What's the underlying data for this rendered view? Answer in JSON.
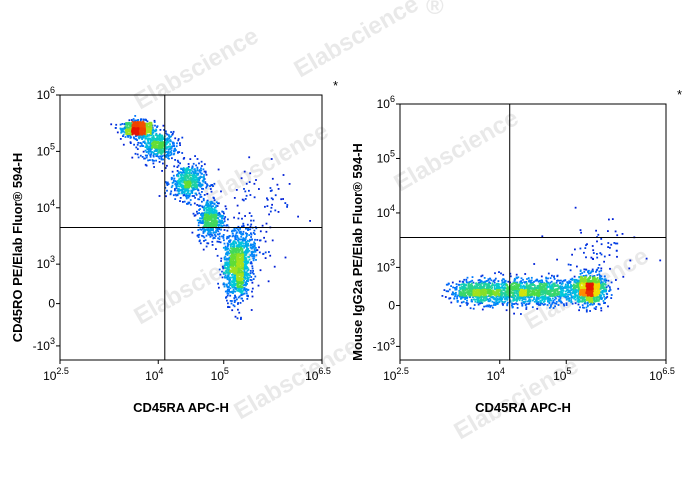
{
  "watermark": "Elabscience",
  "watermark_mark": "®",
  "chart_data": [
    {
      "type": "scatter",
      "style": "density-dot-plot",
      "xlabel": "CD45RA APC-H",
      "ylabel": "CD45RO PE/Elab Fluor® 594-H",
      "corner_mark": "*",
      "x_ticks": [
        {
          "base": "10",
          "exp": "2.5",
          "v": 2.5
        },
        {
          "base": "10",
          "exp": "4",
          "v": 4
        },
        {
          "base": "10",
          "exp": "5",
          "v": 5
        },
        {
          "base": "10",
          "exp": "6.5",
          "v": 6.5
        }
      ],
      "y_ticks": [
        {
          "base": "10",
          "exp": "6",
          "v": 6
        },
        {
          "base": "10",
          "exp": "5",
          "v": 5
        },
        {
          "base": "10",
          "exp": "4",
          "v": 4
        },
        {
          "base": "10",
          "exp": "3",
          "v": 3
        },
        {
          "base": "0",
          "exp": "",
          "v": 2.3
        },
        {
          "base": "-10",
          "exp": "3",
          "v": 1.55
        }
      ],
      "xlim": [
        2.5,
        6.5
      ],
      "ylim": [
        1.3,
        6.0
      ],
      "gate": {
        "x": 4.1,
        "y": 3.65
      },
      "populations": [
        {
          "x": 3.7,
          "y": 5.4,
          "sx": 0.12,
          "sy": 0.07,
          "n": 700
        },
        {
          "x": 4.0,
          "y": 5.1,
          "sx": 0.14,
          "sy": 0.12,
          "n": 450
        },
        {
          "x": 4.45,
          "y": 4.45,
          "sx": 0.13,
          "sy": 0.16,
          "n": 500
        },
        {
          "x": 4.8,
          "y": 3.8,
          "sx": 0.1,
          "sy": 0.18,
          "n": 450
        },
        {
          "x": 5.2,
          "y": 2.9,
          "sx": 0.1,
          "sy": 0.28,
          "n": 900
        },
        {
          "x": 5.3,
          "y": 3.3,
          "sx": 0.15,
          "sy": 0.2,
          "n": 300
        },
        {
          "x": 5.6,
          "y": 4.2,
          "sx": 0.3,
          "sy": 0.3,
          "n": 60
        }
      ]
    },
    {
      "type": "scatter",
      "style": "density-dot-plot",
      "xlabel": "CD45RA APC-H",
      "ylabel": "Mouse IgG2a PE/Elab Fluor® 594-H",
      "corner_mark": "*",
      "x_ticks": [
        {
          "base": "10",
          "exp": "2.5",
          "v": 2.5
        },
        {
          "base": "10",
          "exp": "4",
          "v": 4
        },
        {
          "base": "10",
          "exp": "5",
          "v": 5
        },
        {
          "base": "10",
          "exp": "6.5",
          "v": 6.5
        }
      ],
      "y_ticks": [
        {
          "base": "10",
          "exp": "6",
          "v": 6
        },
        {
          "base": "10",
          "exp": "5",
          "v": 5
        },
        {
          "base": "10",
          "exp": "4",
          "v": 4
        },
        {
          "base": "10",
          "exp": "3",
          "v": 3
        },
        {
          "base": "0",
          "exp": "",
          "v": 2.3
        },
        {
          "base": "-10",
          "exp": "3",
          "v": 1.55
        }
      ],
      "xlim": [
        2.5,
        6.5
      ],
      "ylim": [
        1.3,
        6.0
      ],
      "gate": {
        "x": 4.15,
        "y": 3.55
      },
      "populations": [
        {
          "x": 3.7,
          "y": 2.55,
          "sx": 0.22,
          "sy": 0.11,
          "n": 650
        },
        {
          "x": 4.3,
          "y": 2.55,
          "sx": 0.25,
          "sy": 0.12,
          "n": 600
        },
        {
          "x": 4.8,
          "y": 2.55,
          "sx": 0.22,
          "sy": 0.12,
          "n": 450
        },
        {
          "x": 5.35,
          "y": 2.6,
          "sx": 0.12,
          "sy": 0.14,
          "n": 900
        },
        {
          "x": 5.5,
          "y": 3.2,
          "sx": 0.35,
          "sy": 0.35,
          "n": 70
        }
      ]
    }
  ]
}
